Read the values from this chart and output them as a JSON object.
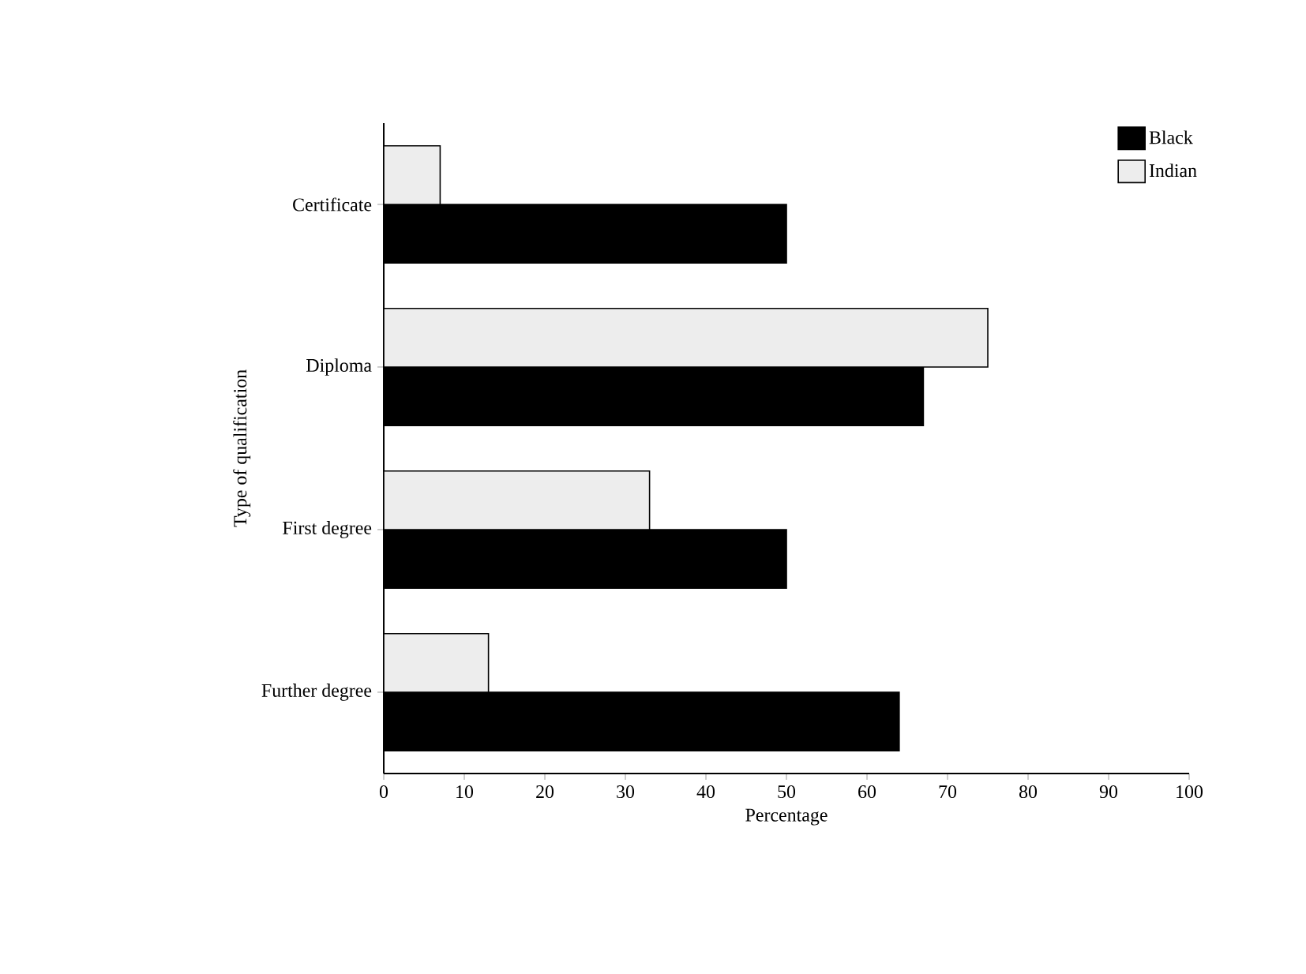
{
  "chart_data": {
    "type": "bar",
    "orientation": "horizontal",
    "xlabel": "Percentage",
    "ylabel": "Type of qualification",
    "categories": [
      "Certificate",
      "Diploma",
      "First degree",
      "Further degree"
    ],
    "series": [
      {
        "name": "Black",
        "color": "#000000",
        "values": [
          50,
          67,
          50,
          64
        ]
      },
      {
        "name": "Indian",
        "color": "#ededed",
        "values": [
          7,
          75,
          33,
          13
        ]
      }
    ],
    "xlim": [
      0,
      100
    ],
    "xticks": [
      0,
      10,
      20,
      30,
      40,
      50,
      60,
      70,
      80,
      90,
      100
    ],
    "grid": false,
    "legend": "top right"
  }
}
